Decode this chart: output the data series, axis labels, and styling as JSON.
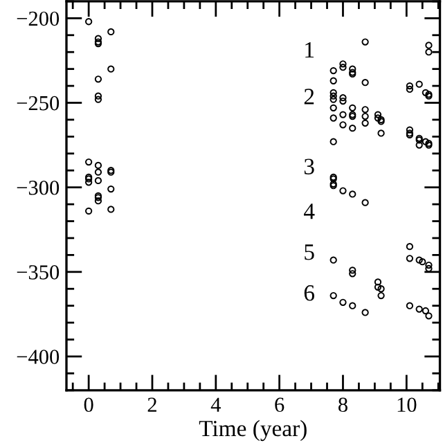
{
  "chart_data": {
    "type": "scatter",
    "xlabel": "Time (year)",
    "xlim": [
      -0.7,
      11.05
    ],
    "ylim": [
      -420,
      -190
    ],
    "xticks": [
      0,
      2,
      4,
      6,
      8,
      10
    ],
    "yticks": [
      {
        "value": -200,
        "label": "−200"
      },
      {
        "value": -250,
        "label": "−250"
      },
      {
        "value": -300,
        "label": "−300"
      },
      {
        "value": -350,
        "label": "−350"
      },
      {
        "value": -400,
        "label": "−400"
      }
    ],
    "grid": false,
    "marker": "circle",
    "series": [
      {
        "color": "#000000",
        "x": [
          0,
          0.3,
          0.3,
          0.3,
          0.7,
          0.7,
          0.3,
          0.3,
          0.3,
          0,
          0.3,
          0.3,
          0.7,
          0.7,
          0,
          0,
          0,
          0.3,
          0.7,
          0.3,
          0.3,
          0.3,
          0,
          0.7,
          8.7,
          10.7,
          10.7,
          7.7,
          8,
          8,
          8.3,
          8.3,
          8.3,
          7.7,
          8.7,
          10.1,
          10.1,
          10.4,
          10.6,
          10.7,
          10.7,
          7.7,
          7.7,
          7.7,
          8,
          8,
          7.7,
          8.3,
          8.7,
          8,
          8.3,
          8.3,
          7.7,
          8.7,
          8.7,
          9.1,
          9.1,
          9.2,
          9.2,
          8,
          8.3,
          9.2,
          10.1,
          10.1,
          10.1,
          10.4,
          10.4,
          10.4,
          10.6,
          10.7,
          10.7,
          7.7,
          7.7,
          7.7,
          7.7,
          7.7,
          8,
          8.3,
          8.7,
          7.7,
          8.3,
          8.3,
          9.1,
          9.1,
          9.2,
          9.2,
          10.1,
          10.1,
          10.4,
          10.5,
          10.7,
          10.7,
          7.7,
          8,
          8.3,
          8.7,
          10.1,
          10.4,
          10.6,
          10.7
        ],
        "values": [
          -202,
          -212,
          -214,
          -215,
          -208,
          -230,
          -236,
          -246,
          -248,
          -285,
          -287,
          -291,
          -290,
          -291,
          -294,
          -295,
          -297,
          -296,
          -301,
          -305,
          -306,
          -308,
          -314,
          -313,
          -214,
          -216,
          -220,
          -231,
          -227,
          -229,
          -230,
          -232,
          -233,
          -237,
          -238,
          -240,
          -242,
          -239,
          -244,
          -245,
          -246,
          -244,
          -246,
          -248,
          -247,
          -249,
          -253,
          -253,
          -254,
          -257,
          -257,
          -258,
          -259,
          -258,
          -262,
          -257,
          -259,
          -260,
          -261,
          -263,
          -265,
          -268,
          -266,
          -268,
          -269,
          -271,
          -272,
          -275,
          -273,
          -274,
          -275,
          -273,
          -294,
          -295,
          -298,
          -299,
          -302,
          -304,
          -309,
          -343,
          -349,
          -351,
          -356,
          -359,
          -360,
          -364,
          -335,
          -342,
          -343,
          -344,
          -346,
          -348,
          -364,
          -368,
          -370,
          -374,
          -370,
          -372,
          -373,
          -376
        ]
      }
    ],
    "annotations": [
      "1",
      "2",
      "3",
      "4",
      "5",
      "6"
    ]
  }
}
